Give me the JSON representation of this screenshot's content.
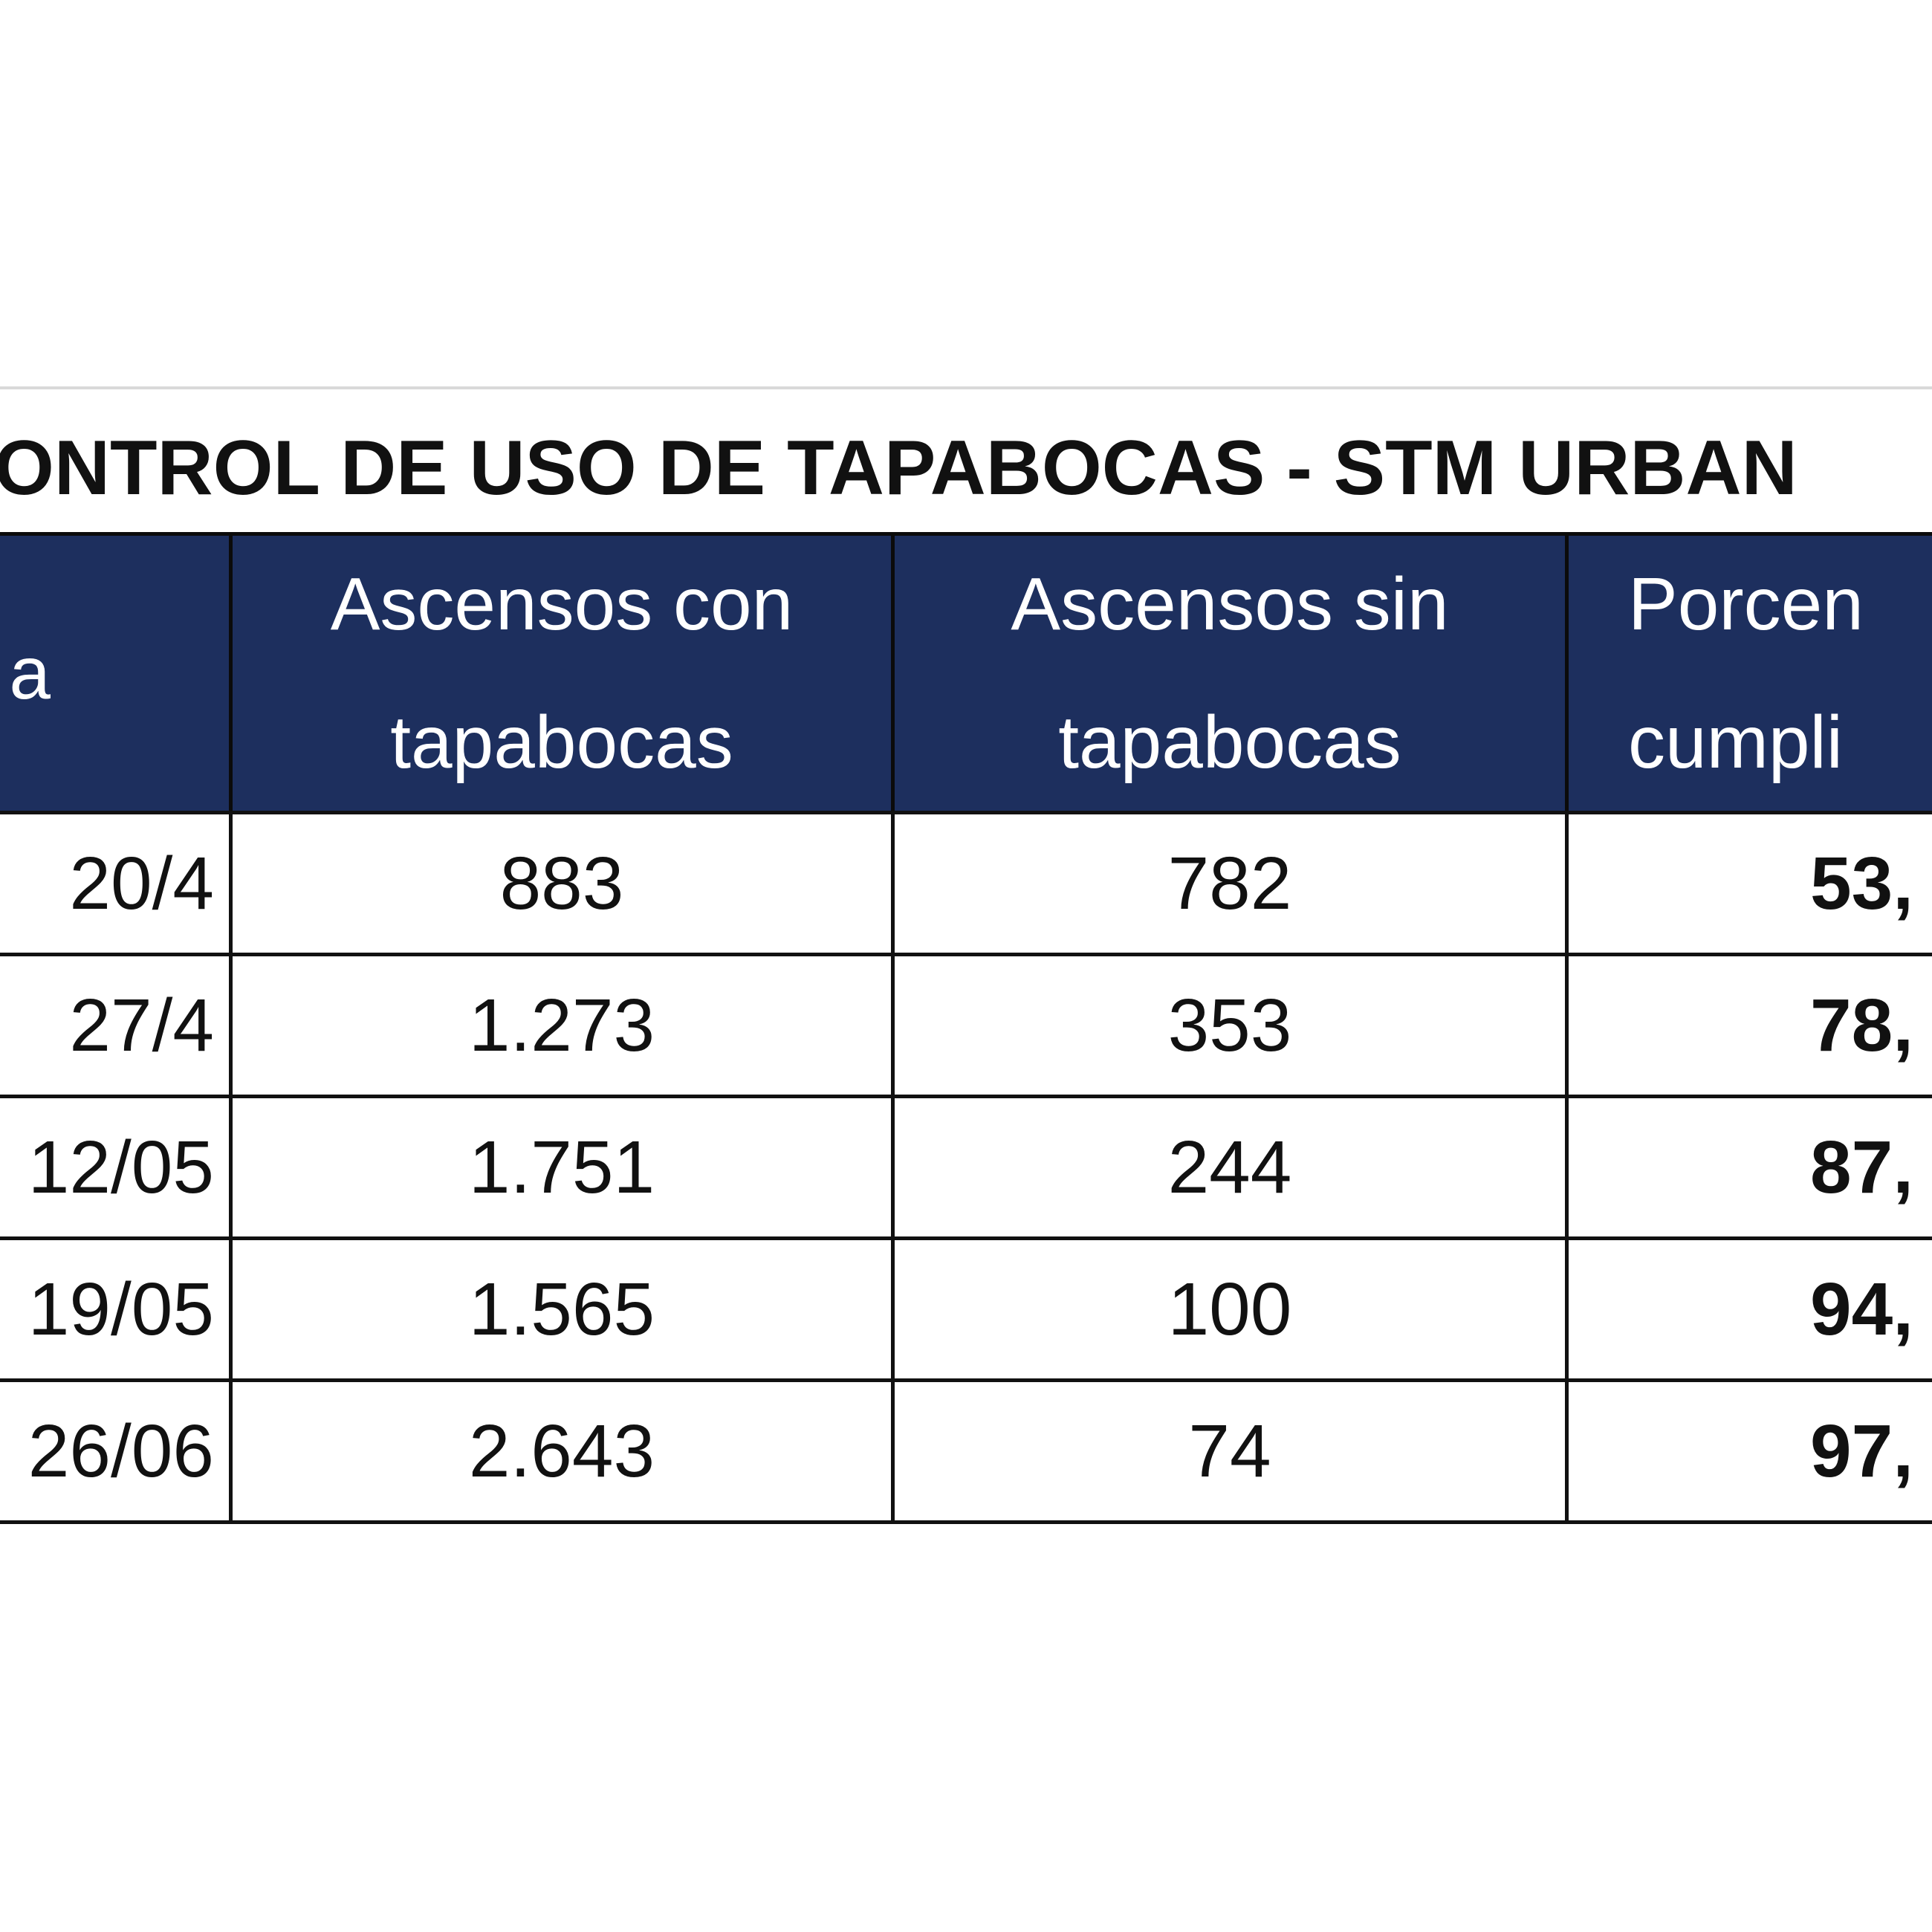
{
  "title": "ONTROL DE USO DE TAPABOCAS - STM URBAN",
  "table": {
    "header": [
      "a",
      "Ascensos con tapabocas",
      "Ascensos sin tapabocas",
      "Porcen cumpli"
    ],
    "rows": [
      [
        "20/4",
        "883",
        "782",
        "53,"
      ],
      [
        "27/4",
        "1.273",
        "353",
        "78,"
      ],
      [
        "12/05",
        "1.751",
        "244",
        "87,"
      ],
      [
        "19/05",
        "1.565",
        "100",
        "94,"
      ],
      [
        "26/06",
        "2.643",
        "74",
        "97,"
      ]
    ]
  }
}
